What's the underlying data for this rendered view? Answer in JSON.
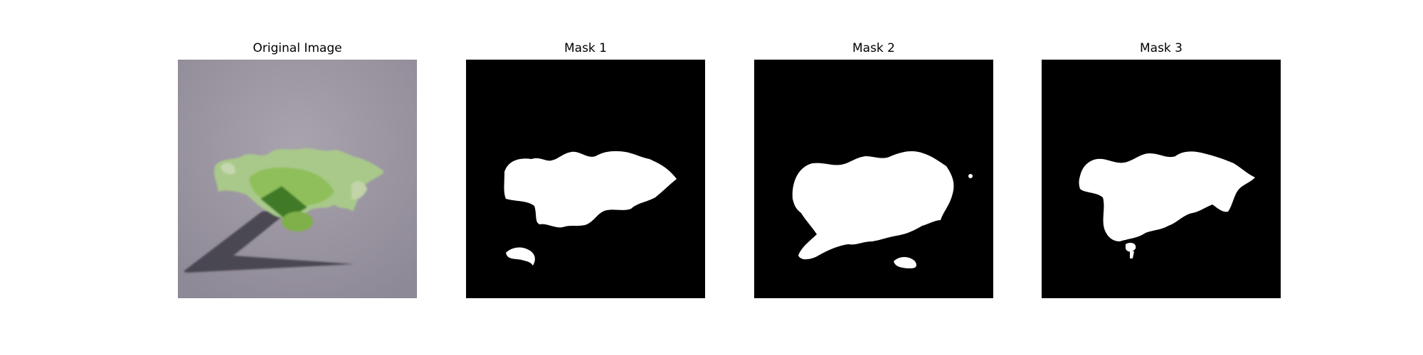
{
  "figure": {
    "panels": [
      {
        "title": "Original Image",
        "kind": "photo"
      },
      {
        "title": "Mask 1",
        "kind": "mask"
      },
      {
        "title": "Mask 2",
        "kind": "mask"
      },
      {
        "title": "Mask 3",
        "kind": "mask"
      }
    ],
    "colors": {
      "mask_background": "#000000",
      "mask_foreground": "#ffffff",
      "photo_background": "#9a95a0",
      "leaf_light": "#a9c98a",
      "leaf_mid": "#8fbf5a",
      "leaf_dark": "#3f7a28",
      "shadow": "#3e3b44"
    }
  }
}
